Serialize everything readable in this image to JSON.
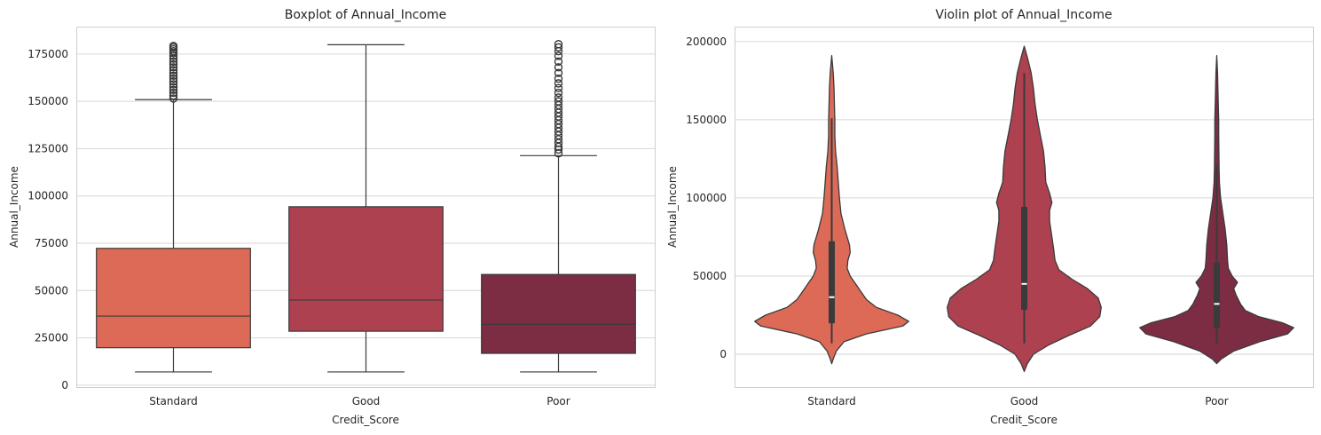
{
  "chart_data": [
    {
      "type": "box",
      "title": "Boxplot of Annual_Income",
      "xlabel": "Credit_Score",
      "ylabel": "Annual_Income",
      "ylim": [
        -1000,
        189000
      ],
      "yticks": [
        0,
        25000,
        50000,
        75000,
        100000,
        125000,
        150000,
        175000
      ],
      "ytick_labels": [
        "0",
        "25000",
        "50000",
        "75000",
        "100000",
        "125000",
        "150000",
        "175000"
      ],
      "grid": true,
      "categories": [
        "Standard",
        "Good",
        "Poor"
      ],
      "series": [
        {
          "category": "Standard",
          "color": "#dd6a57",
          "whisker_low": 7000,
          "q1": 19800,
          "median": 36500,
          "q3": 72300,
          "whisker_high": 150900,
          "outliers": [
            151500,
            153000,
            154500,
            156000,
            157500,
            159000,
            160500,
            162000,
            163500,
            165000,
            166500,
            168000,
            169500,
            171000,
            172500,
            174000,
            175500,
            176500,
            177500,
            178500,
            179300
          ]
        },
        {
          "category": "Good",
          "color": "#ad4150",
          "whisker_low": 7000,
          "q1": 28500,
          "median": 45000,
          "q3": 94300,
          "whisker_high": 179900,
          "outliers": []
        },
        {
          "category": "Poor",
          "color": "#7c2d43",
          "whisker_low": 7000,
          "q1": 16800,
          "median": 32200,
          "q3": 58500,
          "whisker_high": 121300,
          "outliers": [
            122500,
            124500,
            126000,
            128000,
            130000,
            132000,
            134000,
            136000,
            138000,
            140000,
            142000,
            144000,
            146000,
            148000,
            150000,
            152000,
            154500,
            157000,
            159500,
            162000,
            165000,
            168000,
            171000,
            174000,
            176500,
            178500,
            180200
          ]
        }
      ]
    },
    {
      "type": "violin",
      "title": "Violin plot of Annual_Income",
      "xlabel": "Credit_Score",
      "ylabel": "Annual_Income",
      "ylim": [
        -21000,
        209000
      ],
      "yticks": [
        0,
        50000,
        100000,
        150000,
        200000
      ],
      "ytick_labels": [
        "0",
        "50000",
        "100000",
        "150000",
        "200000"
      ],
      "grid": true,
      "categories": [
        "Standard",
        "Good",
        "Poor"
      ],
      "series": [
        {
          "category": "Standard",
          "color": "#dd6a57",
          "q1": 19800,
          "median": 36500,
          "q3": 72300,
          "whisk_low": 7000,
          "whisk_high": 150900,
          "profile": [
            [
              -6000,
              0.0
            ],
            [
              -3000,
              0.02
            ],
            [
              2000,
              0.06
            ],
            [
              8000,
              0.16
            ],
            [
              13000,
              0.45
            ],
            [
              18000,
              0.92
            ],
            [
              21000,
              1.0
            ],
            [
              25000,
              0.86
            ],
            [
              30000,
              0.58
            ],
            [
              35000,
              0.45
            ],
            [
              40000,
              0.38
            ],
            [
              45000,
              0.31
            ],
            [
              50000,
              0.24
            ],
            [
              55000,
              0.2
            ],
            [
              60000,
              0.21
            ],
            [
              65000,
              0.24
            ],
            [
              70000,
              0.23
            ],
            [
              75000,
              0.2
            ],
            [
              80000,
              0.17
            ],
            [
              90000,
              0.12
            ],
            [
              100000,
              0.1
            ],
            [
              110000,
              0.085
            ],
            [
              120000,
              0.07
            ],
            [
              130000,
              0.05
            ],
            [
              140000,
              0.04
            ],
            [
              150000,
              0.04
            ],
            [
              160000,
              0.035
            ],
            [
              170000,
              0.03
            ],
            [
              180000,
              0.02
            ],
            [
              191000,
              0.0
            ]
          ]
        },
        {
          "category": "Good",
          "color": "#ad4150",
          "q1": 28500,
          "median": 45000,
          "q3": 94300,
          "whisk_low": 7000,
          "whisk_high": 179900,
          "profile": [
            [
              -11000,
              0.0
            ],
            [
              -6000,
              0.04
            ],
            [
              0,
              0.12
            ],
            [
              6000,
              0.32
            ],
            [
              12000,
              0.58
            ],
            [
              18000,
              0.86
            ],
            [
              24000,
              0.98
            ],
            [
              30000,
              1.0
            ],
            [
              36000,
              0.96
            ],
            [
              42000,
              0.82
            ],
            [
              48000,
              0.62
            ],
            [
              54000,
              0.45
            ],
            [
              60000,
              0.4
            ],
            [
              68000,
              0.38
            ],
            [
              75000,
              0.36
            ],
            [
              85000,
              0.33
            ],
            [
              92000,
              0.33
            ],
            [
              97000,
              0.36
            ],
            [
              103000,
              0.33
            ],
            [
              110000,
              0.28
            ],
            [
              120000,
              0.27
            ],
            [
              130000,
              0.25
            ],
            [
              140000,
              0.21
            ],
            [
              150000,
              0.17
            ],
            [
              160000,
              0.14
            ],
            [
              170000,
              0.12
            ],
            [
              180000,
              0.09
            ],
            [
              190000,
              0.04
            ],
            [
              197000,
              0.0
            ]
          ]
        },
        {
          "category": "Poor",
          "color": "#7c2d43",
          "q1": 16800,
          "median": 32200,
          "q3": 58500,
          "whisk_low": 7000,
          "whisk_high": 121300,
          "profile": [
            [
              -6000,
              0.0
            ],
            [
              -3000,
              0.06
            ],
            [
              2000,
              0.22
            ],
            [
              8000,
              0.56
            ],
            [
              13000,
              0.92
            ],
            [
              17000,
              1.0
            ],
            [
              20000,
              0.86
            ],
            [
              24000,
              0.55
            ],
            [
              28000,
              0.37
            ],
            [
              32000,
              0.31
            ],
            [
              38000,
              0.25
            ],
            [
              42000,
              0.22
            ],
            [
              46000,
              0.27
            ],
            [
              50000,
              0.2
            ],
            [
              55000,
              0.15
            ],
            [
              60000,
              0.14
            ],
            [
              70000,
              0.13
            ],
            [
              80000,
              0.11
            ],
            [
              90000,
              0.08
            ],
            [
              100000,
              0.05
            ],
            [
              110000,
              0.035
            ],
            [
              120000,
              0.03
            ],
            [
              130000,
              0.028
            ],
            [
              140000,
              0.025
            ],
            [
              150000,
              0.025
            ],
            [
              160000,
              0.02
            ],
            [
              170000,
              0.015
            ],
            [
              180000,
              0.01
            ],
            [
              191000,
              0.0
            ]
          ]
        }
      ]
    }
  ]
}
